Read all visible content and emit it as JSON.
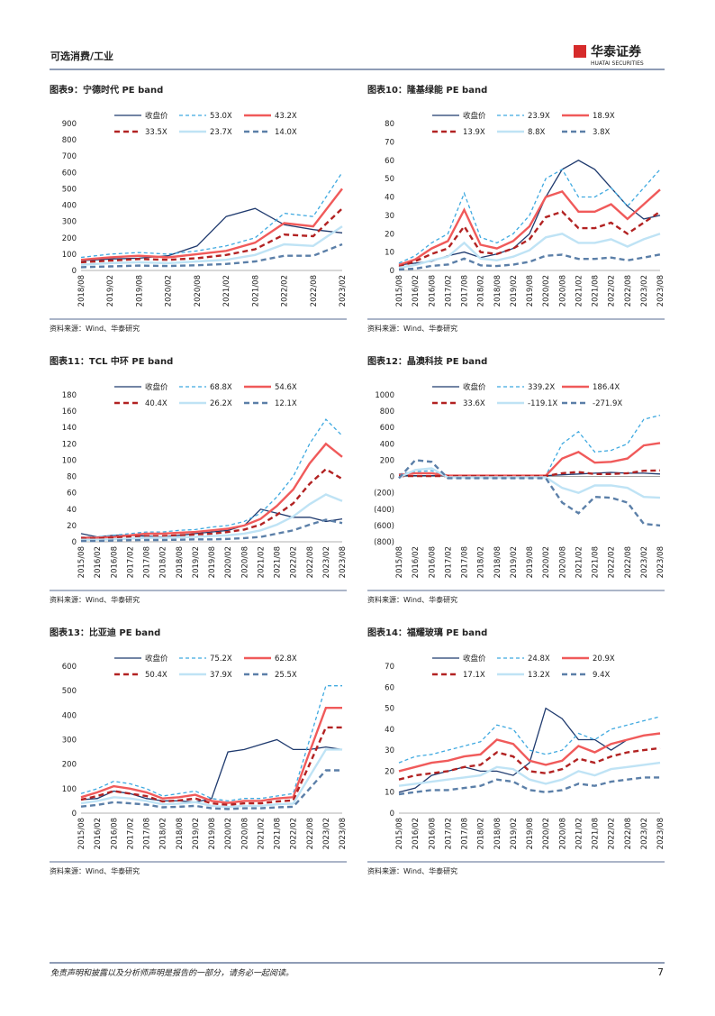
{
  "header": {
    "section": "可选消费/工业",
    "brand": "华泰证券",
    "brand_en": "HUATAI SECURITIES"
  },
  "chart_data": [
    {
      "type": "line",
      "title": "图表9：宁德时代 PE band",
      "source": "资料来源：Wind、华泰研究",
      "categories": [
        "2018/08",
        "2019/02",
        "2019/08",
        "2020/02",
        "2020/08",
        "2021/02",
        "2021/08",
        "2022/02",
        "2022/08",
        "2023/02"
      ],
      "ylim": [
        0,
        900
      ],
      "yticks": [
        0,
        100,
        200,
        300,
        400,
        500,
        600,
        700,
        800,
        900
      ],
      "series": [
        {
          "name": "收盘价",
          "color": "#1f3a6e",
          "style": "solid",
          "values": [
            60,
            70,
            75,
            90,
            150,
            330,
            380,
            280,
            250,
            230
          ]
        },
        {
          "name": "53.0X",
          "color": "#3fa9e0",
          "style": "dashed",
          "values": [
            80,
            100,
            110,
            100,
            120,
            150,
            200,
            350,
            330,
            600
          ]
        },
        {
          "name": "43.2X",
          "color": "#f05a5a",
          "style": "solid",
          "values": [
            65,
            80,
            90,
            80,
            100,
            120,
            170,
            290,
            270,
            500
          ]
        },
        {
          "name": "33.5X",
          "color": "#b22222",
          "style": "dashed",
          "values": [
            50,
            60,
            70,
            65,
            75,
            95,
            130,
            220,
            210,
            380
          ]
        },
        {
          "name": "23.7X",
          "color": "#bfe3f5",
          "style": "solid",
          "values": [
            35,
            45,
            50,
            45,
            55,
            65,
            95,
            160,
            150,
            270
          ]
        },
        {
          "name": "14.0X",
          "color": "#5b7fa8",
          "style": "dashed",
          "values": [
            20,
            25,
            30,
            27,
            32,
            40,
            55,
            90,
            90,
            160
          ]
        }
      ]
    },
    {
      "type": "line",
      "title": "图表10：隆基绿能 PE band",
      "source": "资料来源：Wind、华泰研究",
      "categories": [
        "2015/08",
        "2016/02",
        "2016/08",
        "2017/02",
        "2017/08",
        "2018/02",
        "2018/08",
        "2019/02",
        "2019/08",
        "2020/02",
        "2020/08",
        "2021/02",
        "2021/08",
        "2022/02",
        "2022/08",
        "2023/02",
        "2023/08"
      ],
      "ylim": [
        0,
        80
      ],
      "yticks": [
        0,
        10,
        20,
        30,
        40,
        50,
        60,
        70,
        80
      ],
      "series": [
        {
          "name": "收盘价",
          "color": "#1f3a6e",
          "style": "solid",
          "values": [
            3,
            4,
            5,
            8,
            10,
            7,
            9,
            12,
            20,
            40,
            55,
            60,
            55,
            45,
            35,
            28,
            30
          ]
        },
        {
          "name": "23.9X",
          "color": "#3fa9e0",
          "style": "dashed",
          "values": [
            4,
            8,
            15,
            20,
            42,
            18,
            15,
            20,
            30,
            50,
            55,
            40,
            40,
            45,
            35,
            45,
            55
          ]
        },
        {
          "name": "18.9X",
          "color": "#f05a5a",
          "style": "solid",
          "values": [
            3,
            6,
            12,
            16,
            33,
            14,
            12,
            16,
            24,
            40,
            43,
            32,
            32,
            36,
            28,
            36,
            44
          ]
        },
        {
          "name": "13.9X",
          "color": "#b22222",
          "style": "dashed",
          "values": [
            2,
            5,
            9,
            12,
            24,
            10,
            9,
            12,
            17,
            29,
            32,
            23,
            23,
            26,
            20,
            26,
            32
          ]
        },
        {
          "name": "8.8X",
          "color": "#bfe3f5",
          "style": "solid",
          "values": [
            1.5,
            3,
            5.5,
            7.5,
            15,
            6.5,
            5.5,
            7.5,
            11,
            18,
            20,
            15,
            15,
            17,
            13,
            17,
            20
          ]
        },
        {
          "name": "3.8X",
          "color": "#5b7fa8",
          "style": "dashed",
          "values": [
            0.5,
            1,
            2.5,
            3.2,
            6.5,
            2.8,
            2.4,
            3.2,
            4.7,
            8,
            8.6,
            6.3,
            6.3,
            7,
            5.5,
            7,
            8.7
          ]
        }
      ]
    },
    {
      "type": "line",
      "title": "图表11：TCL 中环 PE band",
      "source": "资料来源：Wind、华泰研究",
      "categories": [
        "2015/08",
        "2016/02",
        "2016/08",
        "2017/02",
        "2017/08",
        "2018/02",
        "2018/08",
        "2019/02",
        "2019/08",
        "2020/02",
        "2020/08",
        "2021/02",
        "2021/08",
        "2022/02",
        "2022/08",
        "2023/02",
        "2023/08"
      ],
      "ylim": [
        0,
        180
      ],
      "yticks": [
        0,
        20,
        40,
        60,
        80,
        100,
        120,
        140,
        160,
        180
      ],
      "series": [
        {
          "name": "收盘价",
          "color": "#1f3a6e",
          "style": "solid",
          "values": [
            10,
            6,
            8,
            8,
            7,
            6,
            8,
            10,
            12,
            14,
            20,
            40,
            35,
            30,
            30,
            25,
            28
          ]
        },
        {
          "name": "68.8X",
          "color": "#3fa9e0",
          "style": "dashed",
          "values": [
            6,
            6,
            8,
            10,
            12,
            12,
            14,
            15,
            18,
            20,
            25,
            35,
            55,
            80,
            120,
            150,
            130
          ]
        },
        {
          "name": "54.6X",
          "color": "#f05a5a",
          "style": "solid",
          "values": [
            5,
            5,
            6,
            8,
            10,
            10,
            11,
            12,
            14,
            16,
            20,
            28,
            44,
            64,
            96,
            120,
            104
          ]
        },
        {
          "name": "40.4X",
          "color": "#b22222",
          "style": "dashed",
          "values": [
            4,
            4,
            5,
            6,
            7,
            7,
            8,
            9,
            10,
            12,
            15,
            21,
            33,
            47,
            71,
            89,
            77
          ]
        },
        {
          "name": "26.2X",
          "color": "#bfe3f5",
          "style": "solid",
          "values": [
            2.5,
            2.5,
            3,
            4,
            5,
            5,
            5.5,
            6,
            7,
            8,
            10,
            14,
            21,
            31,
            46,
            58,
            50
          ]
        },
        {
          "name": "12.1X",
          "color": "#5b7fa8",
          "style": "dashed",
          "values": [
            1,
            1,
            1.5,
            2,
            2.2,
            2.2,
            2.5,
            3,
            3,
            3.5,
            4.5,
            6,
            10,
            14,
            21,
            27,
            23
          ]
        }
      ]
    },
    {
      "type": "line",
      "title": "图表12：晶澳科技 PE band",
      "source": "资料来源：Wind、华泰研究",
      "categories": [
        "2015/08",
        "2016/02",
        "2016/08",
        "2017/02",
        "2017/08",
        "2018/02",
        "2018/08",
        "2019/02",
        "2019/08",
        "2020/02",
        "2020/08",
        "2021/02",
        "2021/08",
        "2022/02",
        "2022/08",
        "2023/02",
        "2023/08"
      ],
      "ylim": [
        -800,
        1000
      ],
      "yticks": [
        1000,
        800,
        600,
        400,
        200,
        0,
        {
          "value": -200,
          "label": "(200)"
        },
        {
          "value": -400,
          "label": "(400)"
        },
        {
          "value": -600,
          "label": "(600)"
        },
        {
          "value": -800,
          "label": "(800)"
        }
      ],
      "series": [
        {
          "name": "收盘价",
          "color": "#1f3a6e",
          "style": "solid",
          "values": [
            10,
            10,
            10,
            10,
            10,
            10,
            10,
            10,
            10,
            10,
            20,
            30,
            40,
            50,
            40,
            40,
            30
          ]
        },
        {
          "name": "339.2X",
          "color": "#3fa9e0",
          "style": "dashed",
          "values": [
            30,
            60,
            70,
            10,
            10,
            10,
            10,
            10,
            10,
            10,
            400,
            550,
            300,
            320,
            400,
            700,
            750
          ]
        },
        {
          "name": "186.4X",
          "color": "#f05a5a",
          "style": "solid",
          "values": [
            20,
            40,
            40,
            10,
            10,
            10,
            10,
            10,
            10,
            10,
            220,
            300,
            170,
            180,
            220,
            380,
            410
          ]
        },
        {
          "name": "33.6X",
          "color": "#b22222",
          "style": "dashed",
          "values": [
            5,
            5,
            5,
            5,
            5,
            5,
            5,
            5,
            5,
            5,
            40,
            55,
            30,
            30,
            40,
            70,
            75
          ]
        },
        {
          "name": "-119.1X",
          "color": "#bfe3f5",
          "style": "solid",
          "values": [
            -10,
            80,
            100,
            -10,
            -10,
            -10,
            -10,
            -10,
            -10,
            -10,
            -140,
            -200,
            -110,
            -110,
            -140,
            -250,
            -260
          ]
        },
        {
          "name": "-271.9X",
          "color": "#5b7fa8",
          "style": "dashed",
          "values": [
            -20,
            200,
            180,
            -20,
            -20,
            -20,
            -20,
            -20,
            -20,
            -20,
            -320,
            -450,
            -250,
            -260,
            -320,
            -580,
            -600
          ]
        }
      ]
    },
    {
      "type": "line",
      "title": "图表13：比亚迪 PE band",
      "source": "资料来源：Wind、华泰研究",
      "categories": [
        "2015/08",
        "2016/02",
        "2016/08",
        "2017/02",
        "2017/08",
        "2018/02",
        "2018/08",
        "2019/02",
        "2019/08",
        "2020/02",
        "2020/08",
        "2021/02",
        "2021/08",
        "2022/02",
        "2022/08",
        "2023/02",
        "2023/08"
      ],
      "ylim": [
        0,
        600
      ],
      "yticks": [
        0,
        100,
        200,
        300,
        400,
        500,
        600
      ],
      "series": [
        {
          "name": "收盘价",
          "color": "#1f3a6e",
          "style": "solid",
          "values": [
            55,
            60,
            90,
            80,
            60,
            50,
            50,
            45,
            60,
            250,
            260,
            280,
            300,
            260,
            260,
            270,
            260
          ]
        },
        {
          "name": "75.2X",
          "color": "#3fa9e0",
          "style": "dashed",
          "values": [
            80,
            100,
            130,
            120,
            100,
            70,
            80,
            90,
            60,
            50,
            60,
            60,
            70,
            80,
            300,
            520,
            520
          ]
        },
        {
          "name": "62.8X",
          "color": "#f05a5a",
          "style": "solid",
          "values": [
            65,
            85,
            110,
            100,
            85,
            60,
            65,
            75,
            50,
            42,
            50,
            50,
            60,
            65,
            250,
            430,
            430
          ]
        },
        {
          "name": "50.4X",
          "color": "#b22222",
          "style": "dashed",
          "values": [
            55,
            70,
            90,
            80,
            70,
            48,
            52,
            60,
            40,
            34,
            40,
            40,
            48,
            52,
            200,
            350,
            350
          ]
        },
        {
          "name": "37.9X",
          "color": "#bfe3f5",
          "style": "solid",
          "values": [
            40,
            50,
            65,
            60,
            50,
            36,
            39,
            45,
            30,
            25,
            30,
            30,
            36,
            39,
            150,
            260,
            260
          ]
        },
        {
          "name": "25.5X",
          "color": "#5b7fa8",
          "style": "dashed",
          "values": [
            27,
            34,
            45,
            40,
            35,
            24,
            26,
            30,
            20,
            17,
            20,
            20,
            24,
            26,
            100,
            175,
            175
          ]
        }
      ]
    },
    {
      "type": "line",
      "title": "图表14：福耀玻璃 PE band",
      "source": "资料来源：Wind、华泰研究",
      "categories": [
        "2015/08",
        "2016/02",
        "2016/08",
        "2017/02",
        "2017/08",
        "2018/02",
        "2018/08",
        "2019/02",
        "2019/08",
        "2020/02",
        "2020/08",
        "2021/02",
        "2021/08",
        "2022/02",
        "2022/08",
        "2023/02",
        "2023/08"
      ],
      "ylim": [
        0,
        70
      ],
      "yticks": [
        0,
        10,
        20,
        30,
        40,
        50,
        60,
        70
      ],
      "series": [
        {
          "name": "收盘价",
          "color": "#1f3a6e",
          "style": "solid",
          "values": [
            10,
            12,
            18,
            20,
            22,
            20,
            20,
            18,
            24,
            50,
            45,
            35,
            35,
            30,
            35,
            37,
            38
          ]
        },
        {
          "name": "24.8X",
          "color": "#3fa9e0",
          "style": "dashed",
          "values": [
            24,
            27,
            28,
            30,
            32,
            34,
            42,
            40,
            30,
            28,
            30,
            38,
            35,
            40,
            42,
            44,
            46
          ]
        },
        {
          "name": "20.9X",
          "color": "#f05a5a",
          "style": "solid",
          "values": [
            20,
            22,
            24,
            25,
            27,
            28,
            35,
            33,
            25,
            23,
            25,
            32,
            29,
            33,
            35,
            37,
            38
          ]
        },
        {
          "name": "17.1X",
          "color": "#b22222",
          "style": "dashed",
          "values": [
            16,
            18,
            19,
            20,
            22,
            23,
            29,
            27,
            20,
            19,
            21,
            26,
            24,
            27,
            29,
            30,
            31
          ]
        },
        {
          "name": "13.2X",
          "color": "#bfe3f5",
          "style": "solid",
          "values": [
            13,
            14,
            15,
            16,
            17,
            18,
            22,
            21,
            16,
            14,
            16,
            20,
            18,
            21,
            22,
            23,
            24
          ]
        },
        {
          "name": "9.4X",
          "color": "#5b7fa8",
          "style": "dashed",
          "values": [
            9,
            10,
            11,
            11,
            12,
            13,
            16,
            15,
            11,
            10,
            11,
            14,
            13,
            15,
            16,
            17,
            17
          ]
        }
      ]
    }
  ],
  "footer": {
    "disclaimer": "免责声明和披露以及分析师声明是报告的一部分，请务必一起阅读。",
    "page": "7"
  }
}
